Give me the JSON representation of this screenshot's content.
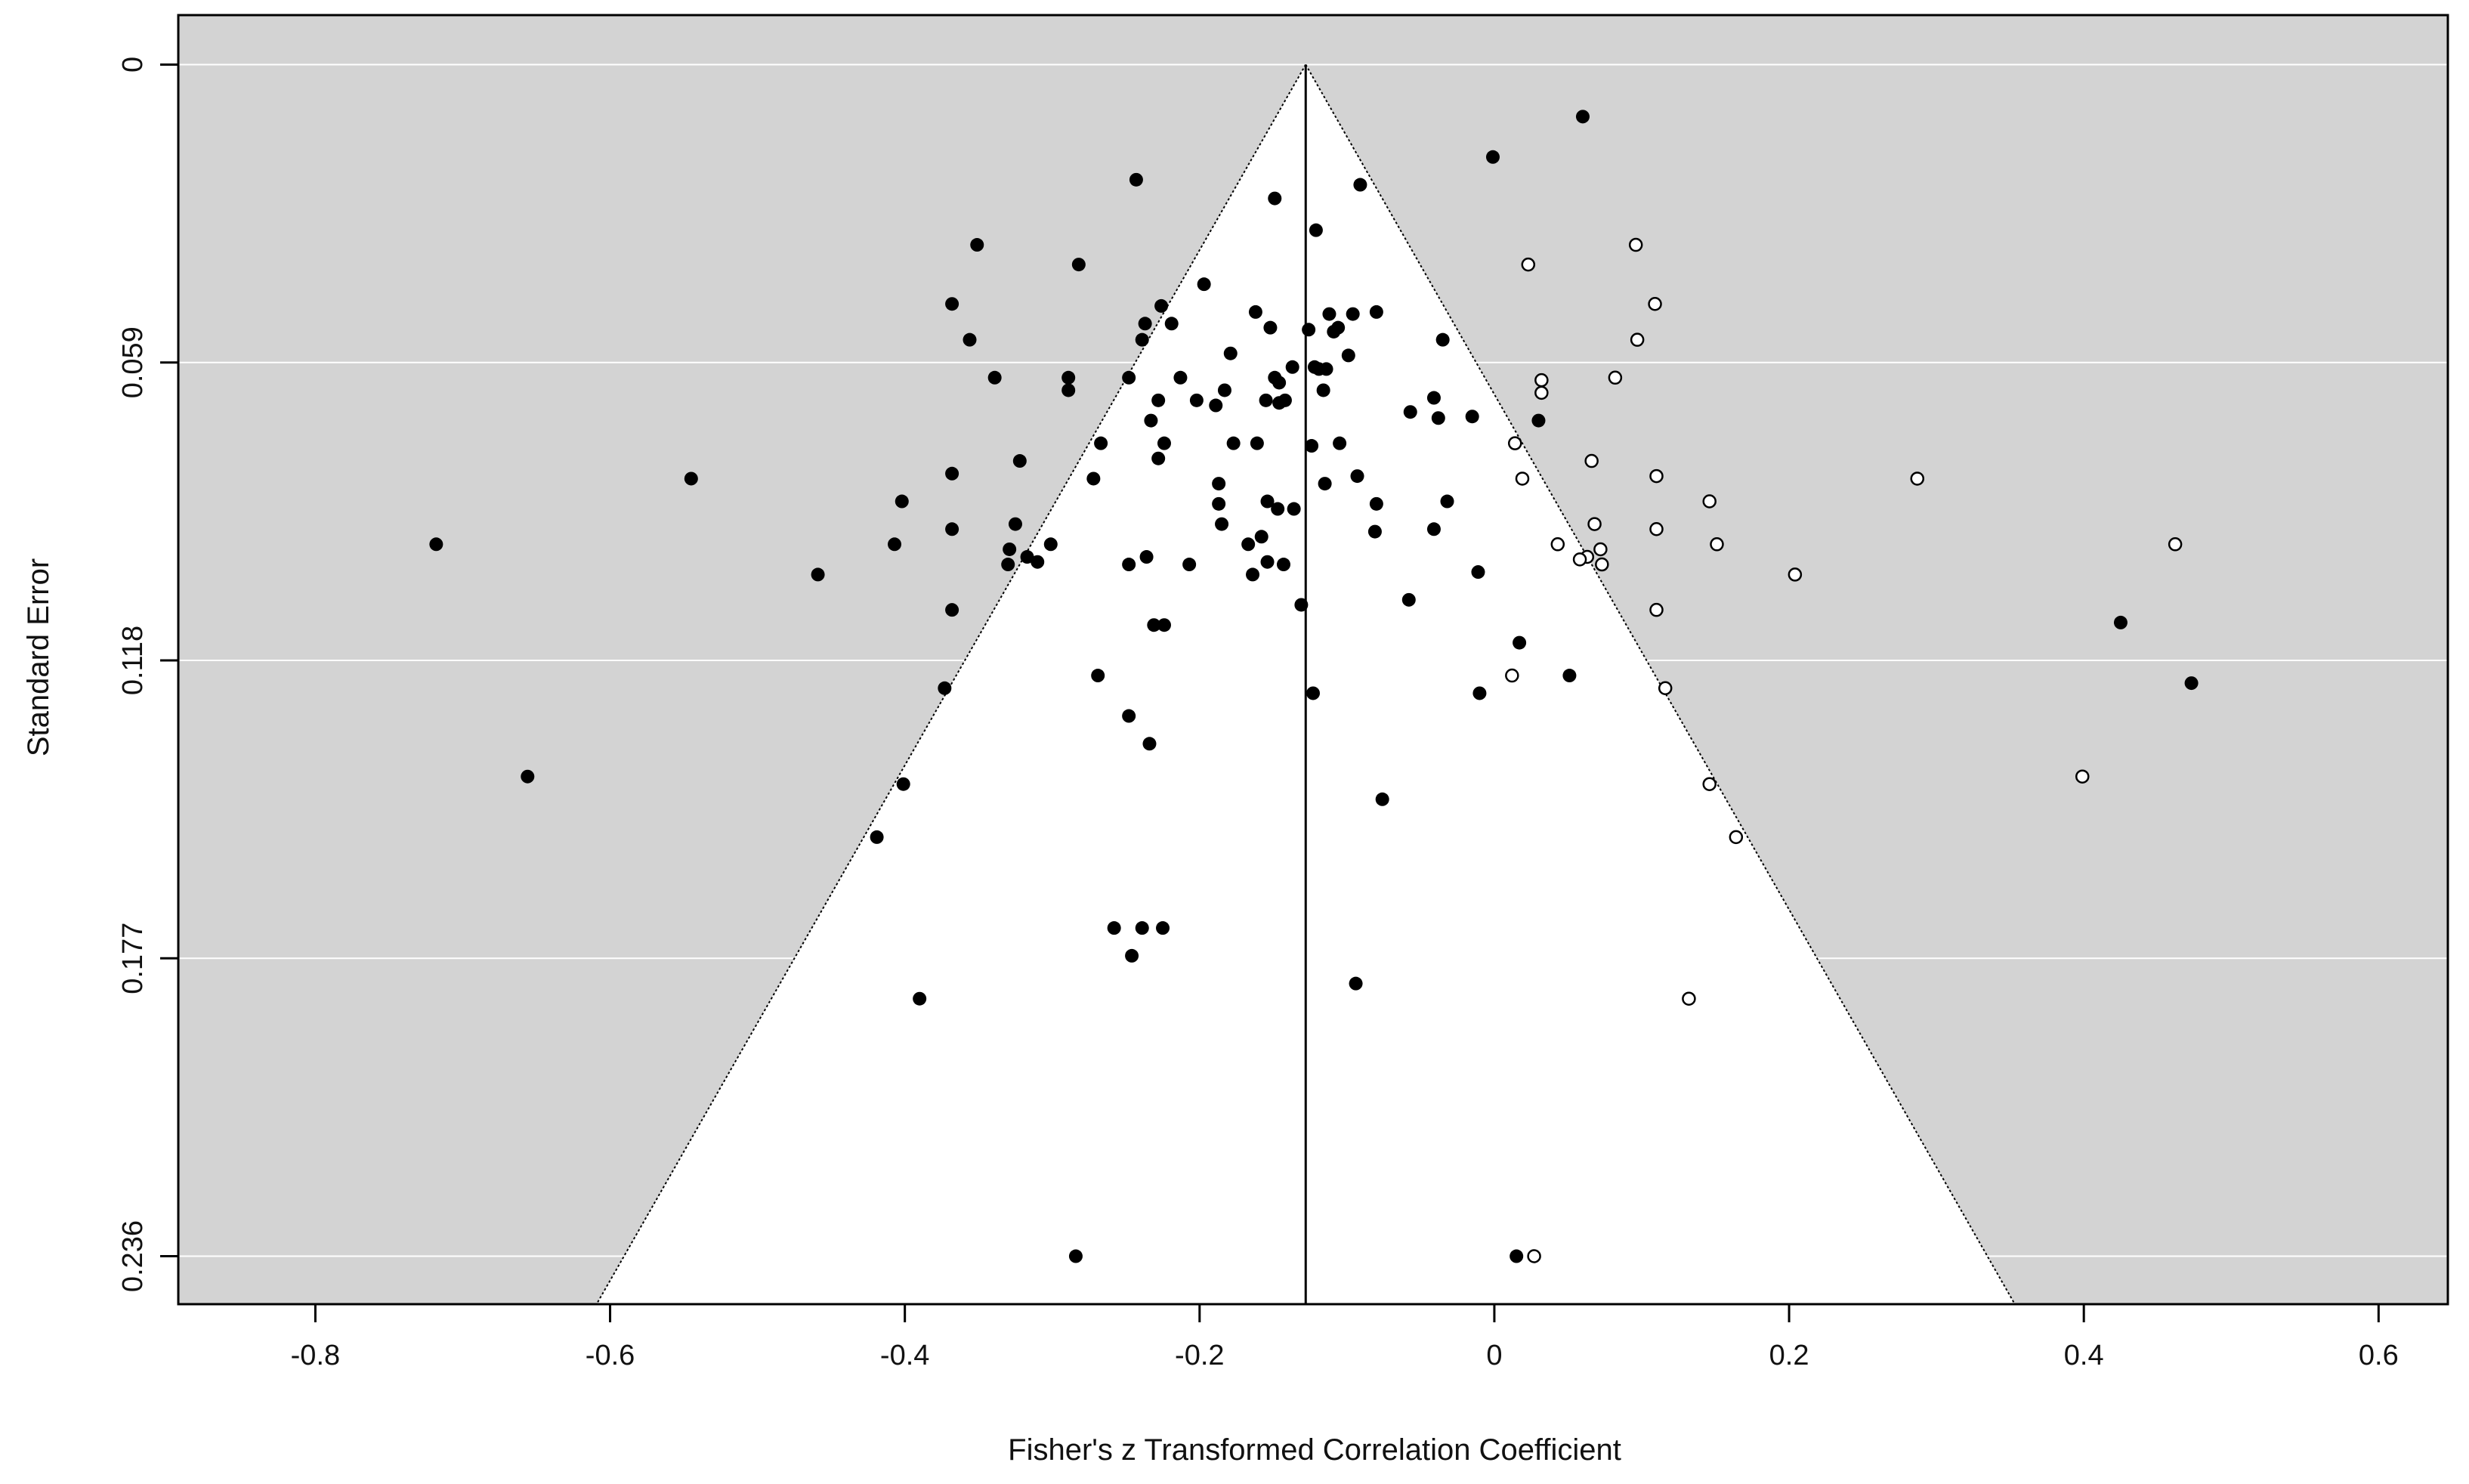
{
  "chart_data": {
    "type": "scatter",
    "title": "",
    "xlabel": "Fisher's z Transformed Correlation Coefficient",
    "ylabel": "Standard Error",
    "xlim": [
      -0.893,
      0.647
    ],
    "ylim": [
      0.2455,
      -0.0098
    ],
    "y_reversed": true,
    "x_ticks": [
      -0.8,
      -0.6,
      -0.4,
      -0.2,
      0,
      0.2,
      0.4,
      0.6
    ],
    "x_tick_labels": [
      "-0.8",
      "-0.6",
      "-0.4",
      "-0.2",
      "0",
      "0.2",
      "0.4",
      "0.6"
    ],
    "y_ticks": [
      0,
      0.059,
      0.118,
      0.177,
      0.236
    ],
    "y_tick_labels": [
      "0",
      "0.059",
      "0.118",
      "0.177",
      "0.236"
    ],
    "grid": "horizontal",
    "colors": {
      "panel": "#d3d3d3",
      "funnel": "#ffffff",
      "gridline": "#ffffff",
      "point": "#000000"
    },
    "funnel": {
      "center": -0.128,
      "apex_se": 0,
      "half_width_per_se": 1.96
    },
    "series": [
      {
        "style": "filled",
        "points": [
          [
            0.06,
            0.0103
          ],
          [
            -0.001,
            0.0183
          ],
          [
            -0.243,
            0.0228
          ],
          [
            -0.149,
            0.0265
          ],
          [
            -0.091,
            0.0238
          ],
          [
            -0.121,
            0.0328
          ],
          [
            -0.351,
            0.0357
          ],
          [
            -0.282,
            0.0396
          ],
          [
            -0.197,
            0.0435
          ],
          [
            -0.368,
            0.0474
          ],
          [
            -0.226,
            0.0478
          ],
          [
            -0.162,
            0.049
          ],
          [
            -0.112,
            0.0494
          ],
          [
            -0.096,
            0.0494
          ],
          [
            -0.08,
            0.049
          ],
          [
            -0.237,
            0.0513
          ],
          [
            -0.219,
            0.0513
          ],
          [
            -0.152,
            0.0521
          ],
          [
            -0.106,
            0.0521
          ],
          [
            -0.126,
            0.0525
          ],
          [
            -0.109,
            0.0529
          ],
          [
            -0.356,
            0.0545
          ],
          [
            -0.239,
            0.0545
          ],
          [
            -0.035,
            0.0545
          ],
          [
            -0.179,
            0.0572
          ],
          [
            -0.099,
            0.0576
          ],
          [
            -0.137,
            0.0599
          ],
          [
            -0.122,
            0.0599
          ],
          [
            -0.114,
            0.0603
          ],
          [
            -0.119,
            0.0603
          ],
          [
            -0.339,
            0.062
          ],
          [
            -0.289,
            0.062
          ],
          [
            -0.248,
            0.062
          ],
          [
            -0.213,
            0.062
          ],
          [
            -0.149,
            0.062
          ],
          [
            -0.146,
            0.063
          ],
          [
            -0.289,
            0.0645
          ],
          [
            -0.183,
            0.0645
          ],
          [
            -0.116,
            0.0645
          ],
          [
            -0.202,
            0.0665
          ],
          [
            -0.228,
            0.0665
          ],
          [
            -0.189,
            0.0675
          ],
          [
            -0.155,
            0.0665
          ],
          [
            -0.146,
            0.067
          ],
          [
            -0.142,
            0.0665
          ],
          [
            -0.041,
            0.066
          ],
          [
            -0.057,
            0.0688
          ],
          [
            -0.038,
            0.07
          ],
          [
            -0.015,
            0.0697
          ],
          [
            0.03,
            0.0705
          ],
          [
            -0.233,
            0.0705
          ],
          [
            -0.224,
            0.075
          ],
          [
            -0.267,
            0.075
          ],
          [
            -0.177,
            0.075
          ],
          [
            -0.161,
            0.075
          ],
          [
            -0.124,
            0.0755
          ],
          [
            -0.105,
            0.075
          ],
          [
            -0.228,
            0.078
          ],
          [
            -0.322,
            0.0785
          ],
          [
            -0.368,
            0.081
          ],
          [
            -0.545,
            0.082
          ],
          [
            -0.272,
            0.082
          ],
          [
            -0.093,
            0.0815
          ],
          [
            -0.115,
            0.083
          ],
          [
            -0.187,
            0.083
          ],
          [
            -0.402,
            0.0865
          ],
          [
            -0.187,
            0.087
          ],
          [
            -0.154,
            0.0865
          ],
          [
            -0.08,
            0.087
          ],
          [
            -0.032,
            0.0865
          ],
          [
            -0.136,
            0.088
          ],
          [
            -0.147,
            0.088
          ],
          [
            -0.185,
            0.091
          ],
          [
            -0.368,
            0.092
          ],
          [
            -0.325,
            0.091
          ],
          [
            -0.081,
            0.0925
          ],
          [
            -0.041,
            0.092
          ],
          [
            -0.407,
            0.095
          ],
          [
            -0.718,
            0.095
          ],
          [
            -0.329,
            0.096
          ],
          [
            -0.301,
            0.095
          ],
          [
            -0.167,
            0.095
          ],
          [
            -0.158,
            0.0935
          ],
          [
            -0.317,
            0.0975
          ],
          [
            -0.33,
            0.099
          ],
          [
            -0.31,
            0.0985
          ],
          [
            -0.236,
            0.0975
          ],
          [
            -0.248,
            0.099
          ],
          [
            -0.207,
            0.099
          ],
          [
            -0.154,
            0.0985
          ],
          [
            -0.143,
            0.099
          ],
          [
            -0.459,
            0.101
          ],
          [
            -0.164,
            0.101
          ],
          [
            -0.011,
            0.1005
          ],
          [
            -0.058,
            0.106
          ],
          [
            -0.131,
            0.107
          ],
          [
            -0.368,
            0.108
          ],
          [
            -0.231,
            0.111
          ],
          [
            -0.224,
            0.111
          ],
          [
            0.017,
            0.1145
          ],
          [
            -0.269,
            0.121
          ],
          [
            0.051,
            0.121
          ],
          [
            -0.373,
            0.1235
          ],
          [
            -0.01,
            0.1245
          ],
          [
            -0.123,
            0.1245
          ],
          [
            -0.248,
            0.129
          ],
          [
            -0.234,
            0.1345
          ],
          [
            -0.656,
            0.141
          ],
          [
            -0.401,
            0.1425
          ],
          [
            -0.076,
            0.1455
          ],
          [
            -0.419,
            0.153
          ],
          [
            -0.258,
            0.171
          ],
          [
            -0.239,
            0.171
          ],
          [
            -0.225,
            0.171
          ],
          [
            -0.246,
            0.1765
          ],
          [
            -0.094,
            0.182
          ],
          [
            -0.39,
            0.185
          ],
          [
            -0.284,
            0.236
          ],
          [
            0.015,
            0.236
          ],
          [
            0.425,
            0.1105
          ],
          [
            0.473,
            0.1225
          ]
        ]
      },
      {
        "style": "open",
        "points": [
          [
            0.096,
            0.0357
          ],
          [
            0.023,
            0.0396
          ],
          [
            0.109,
            0.0474
          ],
          [
            0.097,
            0.0545
          ],
          [
            0.082,
            0.062
          ],
          [
            0.032,
            0.0625
          ],
          [
            0.032,
            0.065
          ],
          [
            0.014,
            0.075
          ],
          [
            0.066,
            0.0785
          ],
          [
            0.11,
            0.0815
          ],
          [
            0.019,
            0.082
          ],
          [
            0.287,
            0.082
          ],
          [
            0.146,
            0.0865
          ],
          [
            0.068,
            0.091
          ],
          [
            0.11,
            0.092
          ],
          [
            0.043,
            0.095
          ],
          [
            0.151,
            0.095
          ],
          [
            0.072,
            0.096
          ],
          [
            0.063,
            0.0975
          ],
          [
            0.058,
            0.098
          ],
          [
            0.073,
            0.099
          ],
          [
            0.204,
            0.101
          ],
          [
            0.462,
            0.095
          ],
          [
            0.11,
            0.108
          ],
          [
            0.012,
            0.121
          ],
          [
            0.116,
            0.1235
          ],
          [
            0.399,
            0.141
          ],
          [
            0.146,
            0.1425
          ],
          [
            0.164,
            0.153
          ],
          [
            0.132,
            0.185
          ],
          [
            0.027,
            0.236
          ]
        ]
      }
    ]
  }
}
